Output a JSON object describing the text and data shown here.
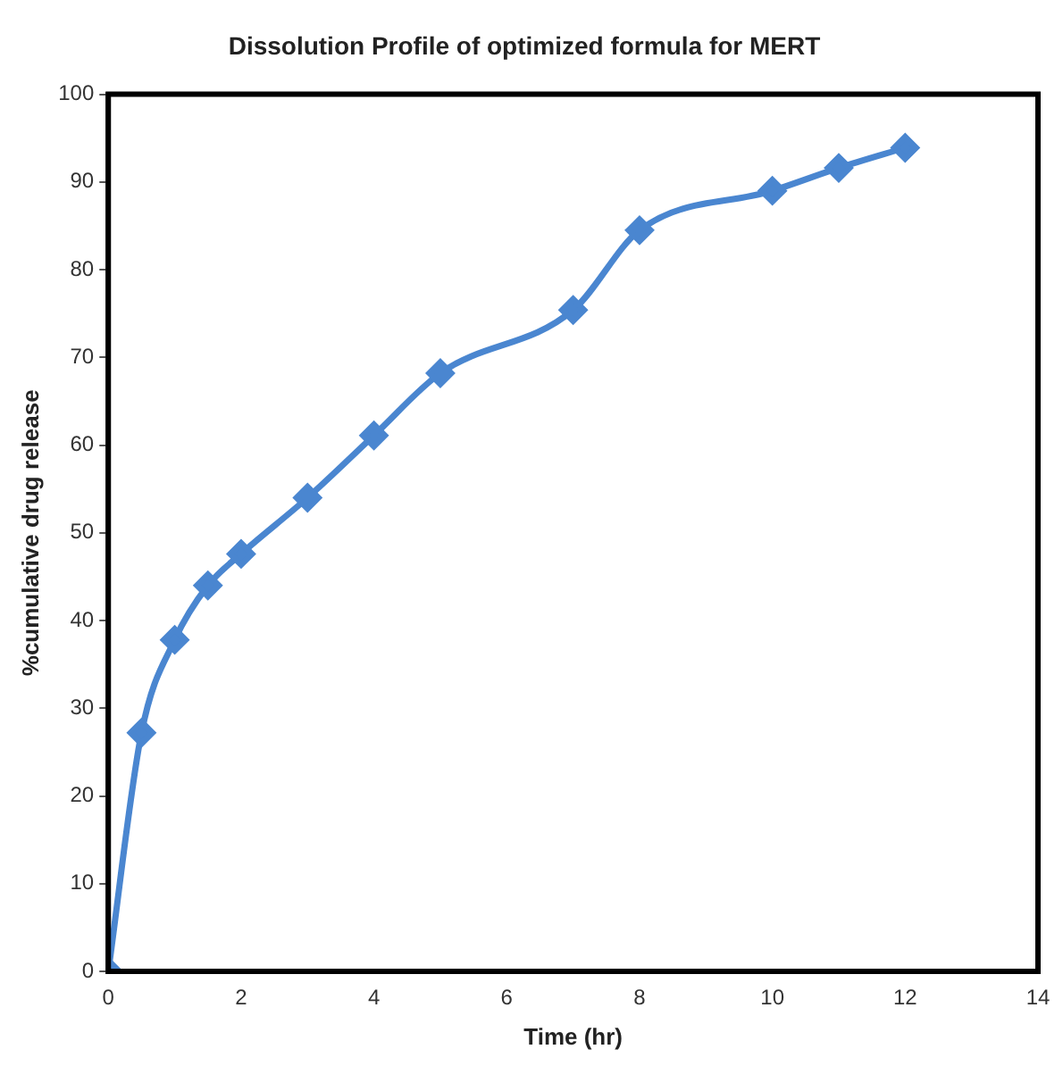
{
  "chart_data": {
    "type": "line",
    "title": "Dissolution Profile of optimized formula for MERT",
    "xlabel": "Time (hr)",
    "ylabel": "%cumulative drug release",
    "x": [
      0,
      0.5,
      1,
      1.5,
      2,
      3,
      4,
      5,
      7,
      8,
      10,
      11,
      12
    ],
    "series": [
      {
        "color": "#4a86d0",
        "values": [
          0,
          27.2,
          37.8,
          44,
          47.6,
          54,
          61.1,
          68.2,
          75.4,
          84.5,
          89,
          91.6,
          93.9
        ]
      }
    ],
    "xlim": [
      0,
      14
    ],
    "xticks": [
      0,
      2,
      4,
      6,
      8,
      10,
      12,
      14
    ],
    "ylim": [
      0,
      100
    ],
    "yticks": [
      0,
      10,
      20,
      30,
      40,
      50,
      60,
      70,
      80,
      90,
      100
    ],
    "grid": false,
    "legend": false,
    "marker": "diamond",
    "line_style": "solid"
  }
}
